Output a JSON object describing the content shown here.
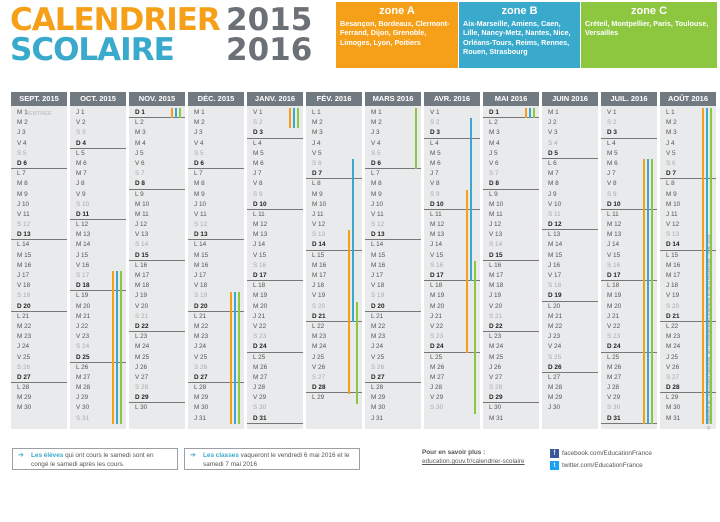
{
  "title": {
    "line1": "CALENDRIER",
    "line2": "SCOLAIRE",
    "year1": "2015",
    "year2": "2016"
  },
  "zones": [
    {
      "title": "zone A",
      "cities": "Besançon, Bordeaux, Clermont-Ferrand, Dijon, Grenoble, Limoges, Lyon, Poitiers"
    },
    {
      "title": "zone B",
      "cities": "Aix-Marseille, Amiens, Caen, Lille, Nancy-Metz, Nantes, Nice, Orléans-Tours, Reims, Rennes, Rouen, Strasbourg"
    },
    {
      "title": "zone C",
      "cities": "Créteil, Montpellier, Paris, Toulouse, Versailles"
    }
  ],
  "colors": {
    "zoneA": "#f6a01a",
    "zoneB": "#39a9cc",
    "zoneC": "#8dc63f",
    "header": "#717981"
  },
  "weekday_letters": [
    "L",
    "M",
    "M",
    "J",
    "V",
    "S",
    "D"
  ],
  "rentree_note": "RENTRÉE",
  "months": [
    {
      "name": "SEPT. 2015",
      "start_dow": 1,
      "days": 30
    },
    {
      "name": "OCT. 2015",
      "start_dow": 3,
      "days": 31
    },
    {
      "name": "NOV. 2015",
      "start_dow": 6,
      "days": 30
    },
    {
      "name": "DÉC. 2015",
      "start_dow": 1,
      "days": 31
    },
    {
      "name": "JANV. 2016",
      "start_dow": 4,
      "days": 31
    },
    {
      "name": "FÉV. 2016",
      "start_dow": 0,
      "days": 29
    },
    {
      "name": "MARS 2016",
      "start_dow": 1,
      "days": 31
    },
    {
      "name": "AVR. 2016",
      "start_dow": 4,
      "days": 30
    },
    {
      "name": "MAI 2016",
      "start_dow": 6,
      "days": 31
    },
    {
      "name": "JUIN 2016",
      "start_dow": 2,
      "days": 30
    },
    {
      "name": "JUIL. 2016",
      "start_dow": 4,
      "days": 31
    },
    {
      "name": "AOÛT 2016",
      "start_dow": 0,
      "days": 31
    }
  ],
  "vacations": [
    {
      "zone": "all",
      "month": 1,
      "from": 17,
      "to": 31
    },
    {
      "zone": "all",
      "month": 2,
      "from": 1,
      "to": 1
    },
    {
      "zone": "all",
      "month": 3,
      "from": 19,
      "to": 31
    },
    {
      "zone": "all",
      "month": 4,
      "from": 1,
      "to": 2
    },
    {
      "zone": "B",
      "month": 5,
      "from": 6,
      "to": 21
    },
    {
      "zone": "A",
      "month": 5,
      "from": 13,
      "to": 28
    },
    {
      "zone": "C",
      "month": 5,
      "from": 20,
      "to": 29
    },
    {
      "zone": "C",
      "month": 6,
      "from": 1,
      "to": 6
    },
    {
      "zone": "B",
      "month": 7,
      "from": 2,
      "to": 17
    },
    {
      "zone": "A",
      "month": 7,
      "from": 9,
      "to": 24
    },
    {
      "zone": "C",
      "month": 7,
      "from": 16,
      "to": 30
    },
    {
      "zone": "C",
      "month": 8,
      "from": 1,
      "to": 1
    },
    {
      "zone": "all",
      "month": 8,
      "from": 1,
      "to": 1
    },
    {
      "zone": "all",
      "month": 10,
      "from": 6,
      "to": 31
    },
    {
      "zone": "all",
      "month": 11,
      "from": 1,
      "to": 31
    }
  ],
  "footer": {
    "note1_bold": "Les élèves",
    "note1_text": " qui ont cours le samedi sont en congé le samedi après les cours.",
    "note2_bold": "Les classes",
    "note2_text": " vaqueront le vendredi 6 mai 2016 et le samedi 7 mai 2016",
    "more_info": "Pour en savoir plus :",
    "link": "education.gouv.fr/calendrier-scolaire",
    "facebook": "facebook.com/EducationFrance",
    "twitter": "twitter.com/EducationFrance"
  },
  "side_credit": "© Ministère de l'Éducation nationale, de l'Enseignement supérieur et de la Recherche - Avril 2015"
}
